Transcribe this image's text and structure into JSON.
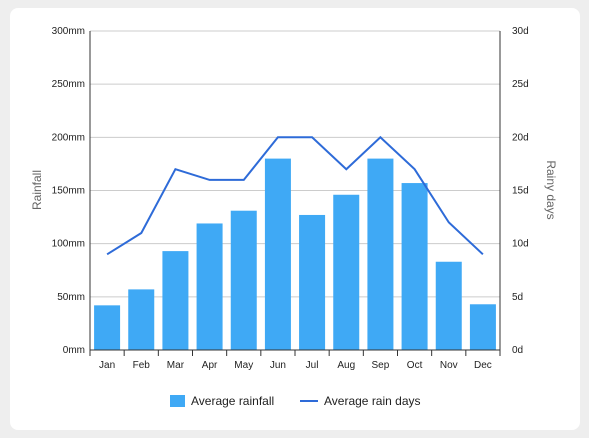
{
  "chart_data": {
    "type": "bar",
    "categories": [
      "Jan",
      "Feb",
      "Mar",
      "Apr",
      "May",
      "Jun",
      "Jul",
      "Aug",
      "Sep",
      "Oct",
      "Nov",
      "Dec"
    ],
    "series": [
      {
        "name": "Average rainfall",
        "type": "bar",
        "axis": "left",
        "color": "#3fa9f5",
        "values": [
          42,
          57,
          93,
          119,
          131,
          180,
          127,
          146,
          180,
          157,
          83,
          43
        ]
      },
      {
        "name": "Average rain days",
        "type": "line",
        "axis": "right",
        "color": "#2e6bd8",
        "values": [
          9,
          11,
          17,
          16,
          16,
          20,
          20,
          17,
          20,
          17,
          12,
          9
        ]
      }
    ],
    "ylabel": "Rainfall",
    "y2label": "Rainy days",
    "ylim": [
      0,
      300
    ],
    "y2lim": [
      0,
      30
    ],
    "yticks": [
      "0mm",
      "50mm",
      "100mm",
      "150mm",
      "200mm",
      "250mm",
      "300mm"
    ],
    "y2ticks": [
      "0d",
      "5d",
      "10d",
      "15d",
      "20d",
      "25d",
      "30d"
    ],
    "grid": true,
    "legend_position": "bottom"
  }
}
